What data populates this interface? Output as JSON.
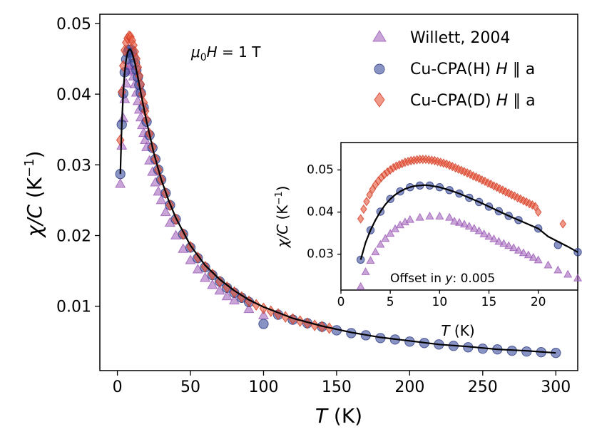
{
  "chart_data": [
    {
      "type": "scatter",
      "xlabel_italic": "T",
      "xlabel_unit": "(K)",
      "ylabel_italic": "χ/C",
      "ylabel_unit": "(K",
      "ylabel_exp": "−1",
      "ylabel_close": ")",
      "xlim": [
        -12,
        315
      ],
      "ylim": [
        0.0009,
        0.0513
      ],
      "xticks": [
        0,
        50,
        100,
        150,
        200,
        250,
        300
      ],
      "xtick_labels": [
        "0",
        "50",
        "100",
        "150",
        "200",
        "250",
        "300"
      ],
      "yticks": [
        0.01,
        0.02,
        0.03,
        0.04,
        0.05
      ],
      "ytick_labels": [
        "0.01",
        "0.02",
        "0.03",
        "0.04",
        "0.05"
      ],
      "grid": false,
      "annotation": {
        "italic": "μ",
        "sub": "0",
        "italic2": "H",
        "rest": " = 1 T"
      },
      "legend": {
        "position": "top-right",
        "entries": [
          {
            "label": "Willett, 2004",
            "marker": "triangle",
            "color": "#9b59b6"
          },
          {
            "label_text": "Cu-CPA(H) ",
            "label_italic": "H",
            "label_rest": " ∥ a",
            "marker": "circle",
            "color": "#3a4d9f"
          },
          {
            "label_text": "Cu-CPA(D) ",
            "label_italic": "H",
            "label_rest": " ∥ a",
            "marker": "diamond",
            "color": "#e8553a"
          }
        ]
      },
      "series": [
        {
          "name": "Willett, 2004",
          "marker": "triangle",
          "color": "#9b59b6",
          "x": [
            2,
            3,
            4,
            5,
            6,
            7,
            8,
            9,
            10,
            11,
            12,
            13,
            14,
            15,
            16,
            17,
            18,
            19,
            20,
            22,
            24,
            26,
            28,
            30,
            33,
            36,
            40,
            45,
            50,
            55,
            60,
            65,
            70,
            75,
            80,
            90,
            100
          ],
          "y": [
            0.0273,
            0.0327,
            0.0366,
            0.0393,
            0.0415,
            0.0432,
            0.0441,
            0.044,
            0.0434,
            0.0425,
            0.0414,
            0.0402,
            0.039,
            0.0378,
            0.0367,
            0.0356,
            0.0345,
            0.0335,
            0.0325,
            0.0306,
            0.029,
            0.0275,
            0.0262,
            0.025,
            0.0233,
            0.0218,
            0.02,
            0.0181,
            0.0165,
            0.0152,
            0.014,
            0.013,
            0.0122,
            0.0114,
            0.0108,
            0.0096,
            0.0087
          ]
        },
        {
          "name": "Cu-CPA(H) H ∥ a",
          "marker": "circle",
          "color": "#3a4d9f",
          "x": [
            2,
            3,
            4,
            5,
            6,
            7,
            8,
            9,
            10,
            11,
            12,
            13,
            14,
            15,
            16,
            18,
            20,
            22,
            24,
            26,
            28,
            30,
            33,
            36,
            40,
            45,
            50,
            55,
            60,
            65,
            70,
            75,
            80,
            85,
            90,
            100,
            110,
            120,
            130,
            140,
            150,
            160,
            170,
            180,
            190,
            200,
            210,
            220,
            230,
            240,
            250,
            260,
            270,
            280,
            290,
            300
          ],
          "y": [
            0.0287,
            0.0357,
            0.0401,
            0.0431,
            0.0449,
            0.0459,
            0.0463,
            0.0463,
            0.0459,
            0.0452,
            0.0444,
            0.0434,
            0.0424,
            0.0413,
            0.0402,
            0.0381,
            0.0361,
            0.0342,
            0.0324,
            0.0308,
            0.0293,
            0.0279,
            0.026,
            0.0243,
            0.0223,
            0.0202,
            0.0183,
            0.0168,
            0.0155,
            0.0144,
            0.0135,
            0.0126,
            0.0119,
            0.0112,
            0.0106,
            0.0075,
            0.0088,
            0.0081,
            0.0076,
            0.0071,
            0.0066,
            0.0062,
            0.0059,
            0.0055,
            0.0053,
            0.005,
            0.0048,
            0.0046,
            0.0044,
            0.0042,
            0.004,
            0.0039,
            0.0037,
            0.0036,
            0.0035,
            0.0034
          ]
        },
        {
          "name": "Cu-CPA(D) H ∥ a",
          "marker": "diamond",
          "color": "#e8553a",
          "x": [
            2,
            3,
            4,
            5,
            6,
            7,
            8,
            9,
            10,
            11,
            12,
            13,
            14,
            15,
            16,
            17,
            18,
            19,
            20,
            22,
            24,
            26,
            28,
            30,
            33,
            36,
            40,
            45,
            50,
            55,
            60,
            65,
            70,
            75,
            80,
            85,
            90,
            95,
            100,
            105,
            110,
            115,
            120,
            125,
            130,
            135,
            140,
            145
          ],
          "y": [
            0.0335,
            0.0403,
            0.044,
            0.0462,
            0.0473,
            0.0479,
            0.0482,
            0.0481,
            0.0476,
            0.0469,
            0.046,
            0.045,
            0.0438,
            0.0426,
            0.0414,
            0.04,
            0.0388,
            0.0376,
            0.0364,
            0.0344,
            0.0325,
            0.0308,
            0.0293,
            0.0279,
            0.026,
            0.0243,
            0.0223,
            0.0202,
            0.0184,
            0.0169,
            0.0156,
            0.0145,
            0.0135,
            0.0127,
            0.012,
            0.0113,
            0.0107,
            0.0102,
            0.0097,
            0.0093,
            0.0089,
            0.0085,
            0.0082,
            0.0079,
            0.0076,
            0.0073,
            0.0071,
            0.0069
          ]
        },
        {
          "name": "",
          "type": "line",
          "color": "#000000",
          "x": [
            2,
            3,
            4,
            5,
            6,
            7,
            8,
            9,
            10,
            12,
            14,
            16,
            18,
            20,
            25,
            30,
            35,
            40,
            50,
            60,
            70,
            80,
            90,
            100,
            120,
            140,
            160,
            180,
            200,
            220,
            240,
            260,
            280,
            300
          ],
          "y": [
            0.0287,
            0.0357,
            0.0401,
            0.0431,
            0.0449,
            0.0459,
            0.0463,
            0.0463,
            0.0459,
            0.0444,
            0.0424,
            0.0402,
            0.0381,
            0.0361,
            0.0316,
            0.0279,
            0.025,
            0.0225,
            0.0186,
            0.0158,
            0.0138,
            0.0122,
            0.0109,
            0.0099,
            0.0083,
            0.0072,
            0.0063,
            0.0056,
            0.0051,
            0.0046,
            0.0043,
            0.0039,
            0.0037,
            0.0034
          ]
        }
      ]
    },
    {
      "type": "scatter",
      "xlabel_italic": "T",
      "xlabel_unit": "(K)",
      "ylabel_italic": "χ/C",
      "ylabel_unit": "(K",
      "ylabel_exp": "−1",
      "ylabel_close": ")",
      "xlim": [
        0,
        24
      ],
      "ylim": [
        0.0215,
        0.0565
      ],
      "xticks": [
        0,
        5,
        10,
        15,
        20
      ],
      "xtick_labels": [
        "0",
        "5",
        "10",
        "15",
        "20"
      ],
      "yticks": [
        0.03,
        0.04,
        0.05
      ],
      "ytick_labels": [
        "0.03",
        "0.04",
        "0.05"
      ],
      "grid": false,
      "annotation": {
        "text": "Offset in ",
        "italic": "y",
        "rest": ": 0.005"
      },
      "series": [
        {
          "name": "Willett, 2004",
          "marker": "triangle",
          "color": "#9b59b6",
          "x": [
            2,
            2.5,
            3,
            3.5,
            4,
            4.5,
            5,
            5.5,
            6,
            6.5,
            7,
            8,
            9,
            10,
            11,
            11.5,
            12,
            12.5,
            13,
            13.5,
            14,
            14.5,
            15,
            15.5,
            16,
            16.5,
            17,
            17.5,
            18,
            18.5,
            19,
            19.5,
            20,
            21,
            22,
            23,
            24
          ],
          "y": [
            0.0223,
            0.0258,
            0.0285,
            0.0305,
            0.0323,
            0.0337,
            0.0349,
            0.036,
            0.0369,
            0.0376,
            0.0382,
            0.0387,
            0.039,
            0.039,
            0.0387,
            0.0378,
            0.0375,
            0.0371,
            0.0366,
            0.0361,
            0.0355,
            0.0348,
            0.0342,
            0.0336,
            0.033,
            0.0325,
            0.032,
            0.0315,
            0.0309,
            0.0303,
            0.0298,
            0.0292,
            0.0286,
            0.0274,
            0.0262,
            0.0252,
            0.0243
          ]
        },
        {
          "name": "Cu-CPA(H) H ∥ a",
          "marker": "circle",
          "color": "#3a4d9f",
          "x": [
            2,
            3,
            4,
            5,
            6,
            7,
            8,
            9,
            10,
            11,
            12,
            13,
            14,
            15,
            16,
            17,
            18,
            20,
            22,
            24
          ],
          "y": [
            0.0287,
            0.0357,
            0.0401,
            0.0431,
            0.0449,
            0.0459,
            0.0463,
            0.0463,
            0.0459,
            0.0452,
            0.0444,
            0.0434,
            0.0424,
            0.0413,
            0.0402,
            0.0391,
            0.0381,
            0.0361,
            0.0322,
            0.0305
          ]
        },
        {
          "name": "Cu-CPA(D) H ∥ a",
          "marker": "diamond",
          "color": "#e8553a",
          "x": [
            2,
            2.3,
            2.6,
            2.9,
            3.2,
            3.5,
            3.8,
            4.1,
            4.4,
            4.7,
            5,
            5.3,
            5.6,
            5.9,
            6.2,
            6.5,
            6.8,
            7.1,
            7.4,
            7.7,
            8,
            8.3,
            8.6,
            8.9,
            9.2,
            9.5,
            9.8,
            10.1,
            10.4,
            10.7,
            11,
            11.3,
            11.6,
            11.9,
            12.2,
            12.5,
            12.8,
            13.1,
            13.4,
            13.7,
            14,
            14.3,
            14.6,
            14.9,
            15.2,
            15.5,
            15.8,
            16.1,
            16.4,
            16.7,
            17,
            17.3,
            17.6,
            17.9,
            18.2,
            18.5,
            18.8,
            19.1,
            19.4,
            19.7,
            20,
            22.5
          ],
          "y": [
            0.0384,
            0.0407,
            0.0425,
            0.0441,
            0.0454,
            0.0465,
            0.0474,
            0.0482,
            0.0489,
            0.0495,
            0.05,
            0.0505,
            0.0509,
            0.0512,
            0.0515,
            0.0518,
            0.052,
            0.0522,
            0.0523,
            0.0524,
            0.0525,
            0.0525,
            0.0525,
            0.0524,
            0.0523,
            0.0522,
            0.052,
            0.0518,
            0.0516,
            0.0514,
            0.0511,
            0.0508,
            0.0505,
            0.0502,
            0.0499,
            0.0496,
            0.0493,
            0.049,
            0.0486,
            0.0483,
            0.048,
            0.0476,
            0.0473,
            0.0469,
            0.0466,
            0.0462,
            0.0459,
            0.0455,
            0.0452,
            0.0448,
            0.0445,
            0.0441,
            0.0438,
            0.0434,
            0.0431,
            0.0427,
            0.0424,
            0.042,
            0.0417,
            0.0413,
            0.04,
            0.0372
          ]
        },
        {
          "name": "",
          "type": "line",
          "color": "#000000",
          "x": [
            2,
            2.5,
            3,
            3.5,
            4,
            4.5,
            5,
            5.5,
            6,
            6.5,
            7,
            7.5,
            8,
            8.5,
            9,
            10,
            11,
            12,
            13,
            14,
            15,
            16,
            17,
            18,
            19,
            20,
            21,
            22,
            23,
            24
          ],
          "y": [
            0.0287,
            0.0328,
            0.0357,
            0.0381,
            0.0401,
            0.0418,
            0.0431,
            0.0441,
            0.0449,
            0.0455,
            0.0459,
            0.0462,
            0.0463,
            0.0464,
            0.0463,
            0.0459,
            0.0452,
            0.0444,
            0.0434,
            0.0424,
            0.0413,
            0.0402,
            0.0391,
            0.0381,
            0.0371,
            0.0361,
            0.0342,
            0.033,
            0.0318,
            0.0305
          ]
        }
      ]
    }
  ]
}
